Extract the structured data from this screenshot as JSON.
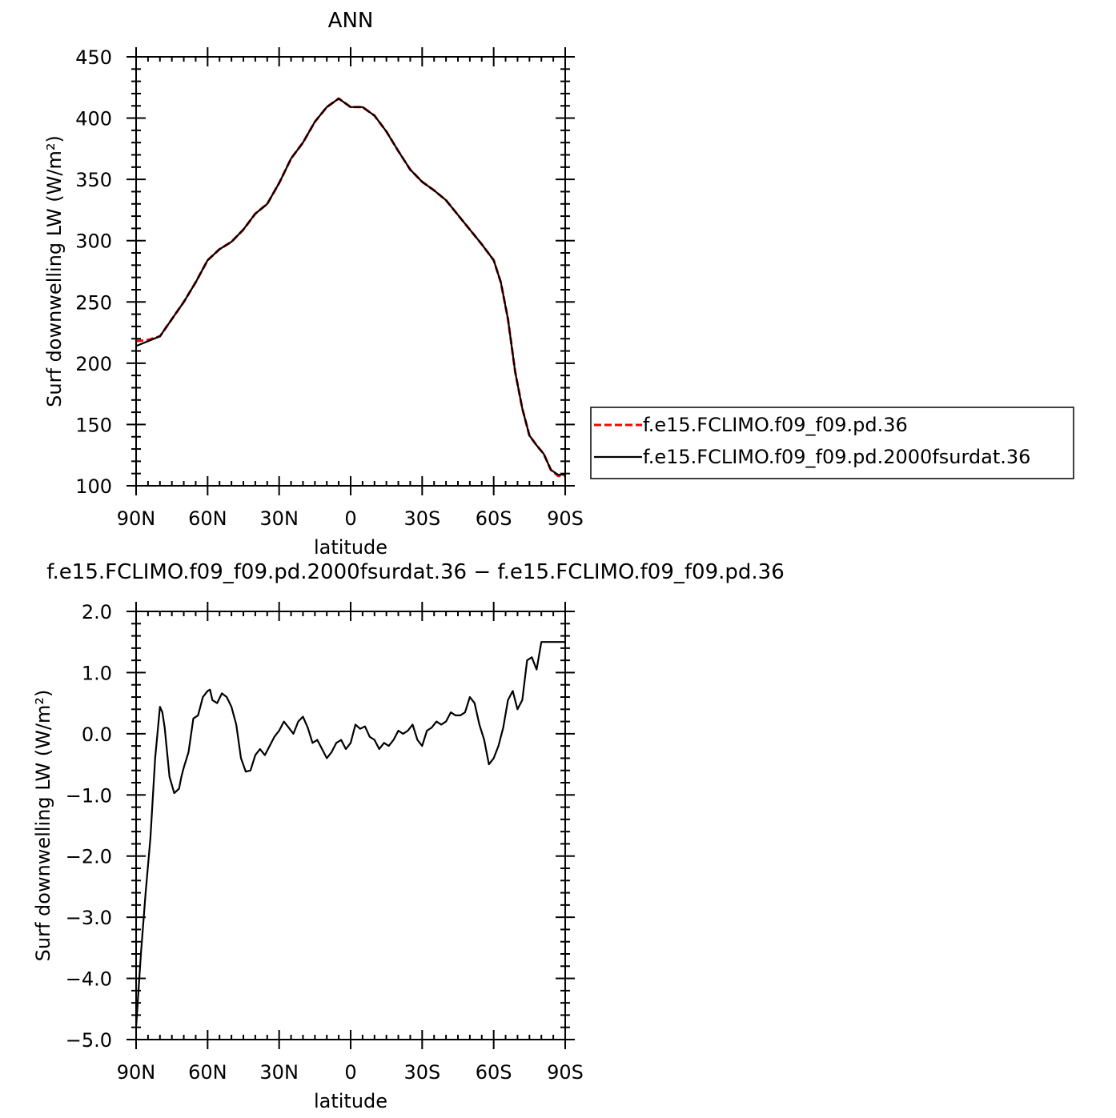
{
  "chart_data": [
    {
      "type": "line",
      "title": "ANN",
      "xlabel": "latitude",
      "ylabel": "Surf downwelling LW (W/m²)",
      "xlim": [
        90,
        -90
      ],
      "ylim": [
        100,
        450
      ],
      "x_ticks": [
        90,
        60,
        30,
        0,
        -30,
        -60,
        -90
      ],
      "x_tick_labels": [
        "90N",
        "60N",
        "30N",
        "0",
        "30S",
        "60S",
        "90S"
      ],
      "y_ticks": [
        100,
        150,
        200,
        250,
        300,
        350,
        400,
        450
      ],
      "y_tick_labels": [
        "100",
        "150",
        "200",
        "250",
        "300",
        "350",
        "400",
        "450"
      ],
      "grid": false,
      "legend_position": "right",
      "series": [
        {
          "name": "f.e15.FCLIMO.f09_f09.pd.36",
          "color": "#ff0000",
          "dash": "dashed",
          "x": [
            90,
            85,
            80,
            75,
            70,
            65,
            60,
            55,
            50,
            45,
            40,
            35,
            30,
            25,
            20,
            15,
            10,
            5,
            0,
            -5,
            -10,
            -15,
            -20,
            -25,
            -30,
            -35,
            -40,
            -45,
            -50,
            -55,
            -60,
            -63,
            -66,
            -69,
            -72,
            -75,
            -78,
            -81,
            -84,
            -87,
            -90
          ],
          "y": [
            218,
            219,
            222,
            236,
            250,
            266,
            284,
            293,
            299,
            309,
            322,
            330,
            347,
            367,
            380,
            397,
            409,
            416,
            409,
            409,
            402,
            389,
            373,
            358,
            348,
            341,
            333,
            321,
            309,
            297,
            284,
            266,
            236,
            193,
            163,
            141,
            133,
            126,
            113,
            108,
            108
          ]
        },
        {
          "name": "f.e15.FCLIMO.f09_f09.pd.2000fsurdat.36",
          "color": "#000000",
          "dash": "solid",
          "x": [
            90,
            85,
            80,
            75,
            70,
            65,
            60,
            55,
            50,
            45,
            40,
            35,
            30,
            25,
            20,
            15,
            10,
            5,
            0,
            -5,
            -10,
            -15,
            -20,
            -25,
            -30,
            -35,
            -40,
            -45,
            -50,
            -55,
            -60,
            -63,
            -66,
            -69,
            -72,
            -75,
            -78,
            -81,
            -84,
            -87,
            -90
          ],
          "y": [
            214,
            218,
            222,
            236,
            250,
            266,
            284,
            293,
            299,
            309,
            322,
            330,
            347,
            367,
            380,
            397,
            409,
            416,
            409,
            409,
            402,
            389,
            373,
            358,
            348,
            341,
            333,
            321,
            309,
            297,
            284,
            266,
            236,
            193,
            163,
            141,
            133,
            126,
            113,
            109,
            109
          ]
        }
      ]
    },
    {
      "type": "line",
      "title": "f.e15.FCLIMO.f09_f09.pd.2000fsurdat.36 − f.e15.FCLIMO.f09_f09.pd.36",
      "xlabel": "latitude",
      "ylabel": "Surf downwelling LW (W/m²)",
      "xlim": [
        90,
        -90
      ],
      "ylim": [
        -5.0,
        2.0
      ],
      "x_ticks": [
        90,
        60,
        30,
        0,
        -30,
        -60,
        -90
      ],
      "x_tick_labels": [
        "90N",
        "60N",
        "30N",
        "0",
        "30S",
        "60S",
        "90S"
      ],
      "y_ticks": [
        -5.0,
        -4.0,
        -3.0,
        -2.0,
        -1.0,
        0.0,
        1.0,
        2.0
      ],
      "y_tick_labels": [
        "−5.0",
        "−4.0",
        "−3.0",
        "−2.0",
        "−1.0",
        "0.0",
        "1.0",
        "2.0"
      ],
      "grid": false,
      "series": [
        {
          "color": "#000000",
          "dash": "solid",
          "x": [
            90,
            88,
            86,
            84,
            82,
            80,
            79,
            78,
            76,
            74,
            72,
            71,
            70,
            68,
            66,
            64,
            62,
            60,
            59,
            58,
            56,
            54,
            52,
            50,
            48,
            46,
            44,
            42,
            40,
            38,
            36,
            34,
            32,
            30,
            28,
            26,
            24,
            22,
            20,
            18,
            16,
            14,
            12,
            10,
            8,
            6,
            4,
            2,
            0,
            -2,
            -4,
            -6,
            -8,
            -10,
            -12,
            -14,
            -16,
            -18,
            -20,
            -22,
            -24,
            -26,
            -28,
            -30,
            -32,
            -34,
            -36,
            -38,
            -40,
            -42,
            -44,
            -46,
            -48,
            -50,
            -52,
            -54,
            -56,
            -58,
            -60,
            -62,
            -64,
            -66,
            -68,
            -70,
            -72,
            -74,
            -76,
            -78,
            -80,
            -82,
            -84,
            -86,
            -88,
            -89,
            -90
          ],
          "y": [
            -4.8,
            -3.6,
            -2.6,
            -1.7,
            -0.4,
            0.44,
            0.35,
            0.1,
            -0.7,
            -0.97,
            -0.9,
            -0.7,
            -0.55,
            -0.3,
            0.25,
            0.3,
            0.6,
            0.7,
            0.72,
            0.55,
            0.5,
            0.66,
            0.6,
            0.44,
            0.15,
            -0.4,
            -0.62,
            -0.6,
            -0.35,
            -0.25,
            -0.35,
            -0.2,
            -0.05,
            0.05,
            0.2,
            0.1,
            0.0,
            0.2,
            0.28,
            0.1,
            -0.15,
            -0.1,
            -0.25,
            -0.4,
            -0.3,
            -0.15,
            -0.1,
            -0.25,
            -0.15,
            0.15,
            0.08,
            0.12,
            -0.05,
            -0.1,
            -0.25,
            -0.15,
            -0.2,
            -0.1,
            0.05,
            0.0,
            0.05,
            0.15,
            -0.1,
            -0.2,
            0.05,
            0.1,
            0.2,
            0.15,
            0.2,
            0.35,
            0.3,
            0.3,
            0.35,
            0.6,
            0.5,
            0.15,
            -0.1,
            -0.5,
            -0.4,
            -0.2,
            0.1,
            0.55,
            0.7,
            0.4,
            0.55,
            1.2,
            1.25,
            1.05,
            1.5,
            1.5,
            1.5,
            1.5,
            1.5,
            1.5,
            1.5
          ]
        }
      ]
    }
  ]
}
